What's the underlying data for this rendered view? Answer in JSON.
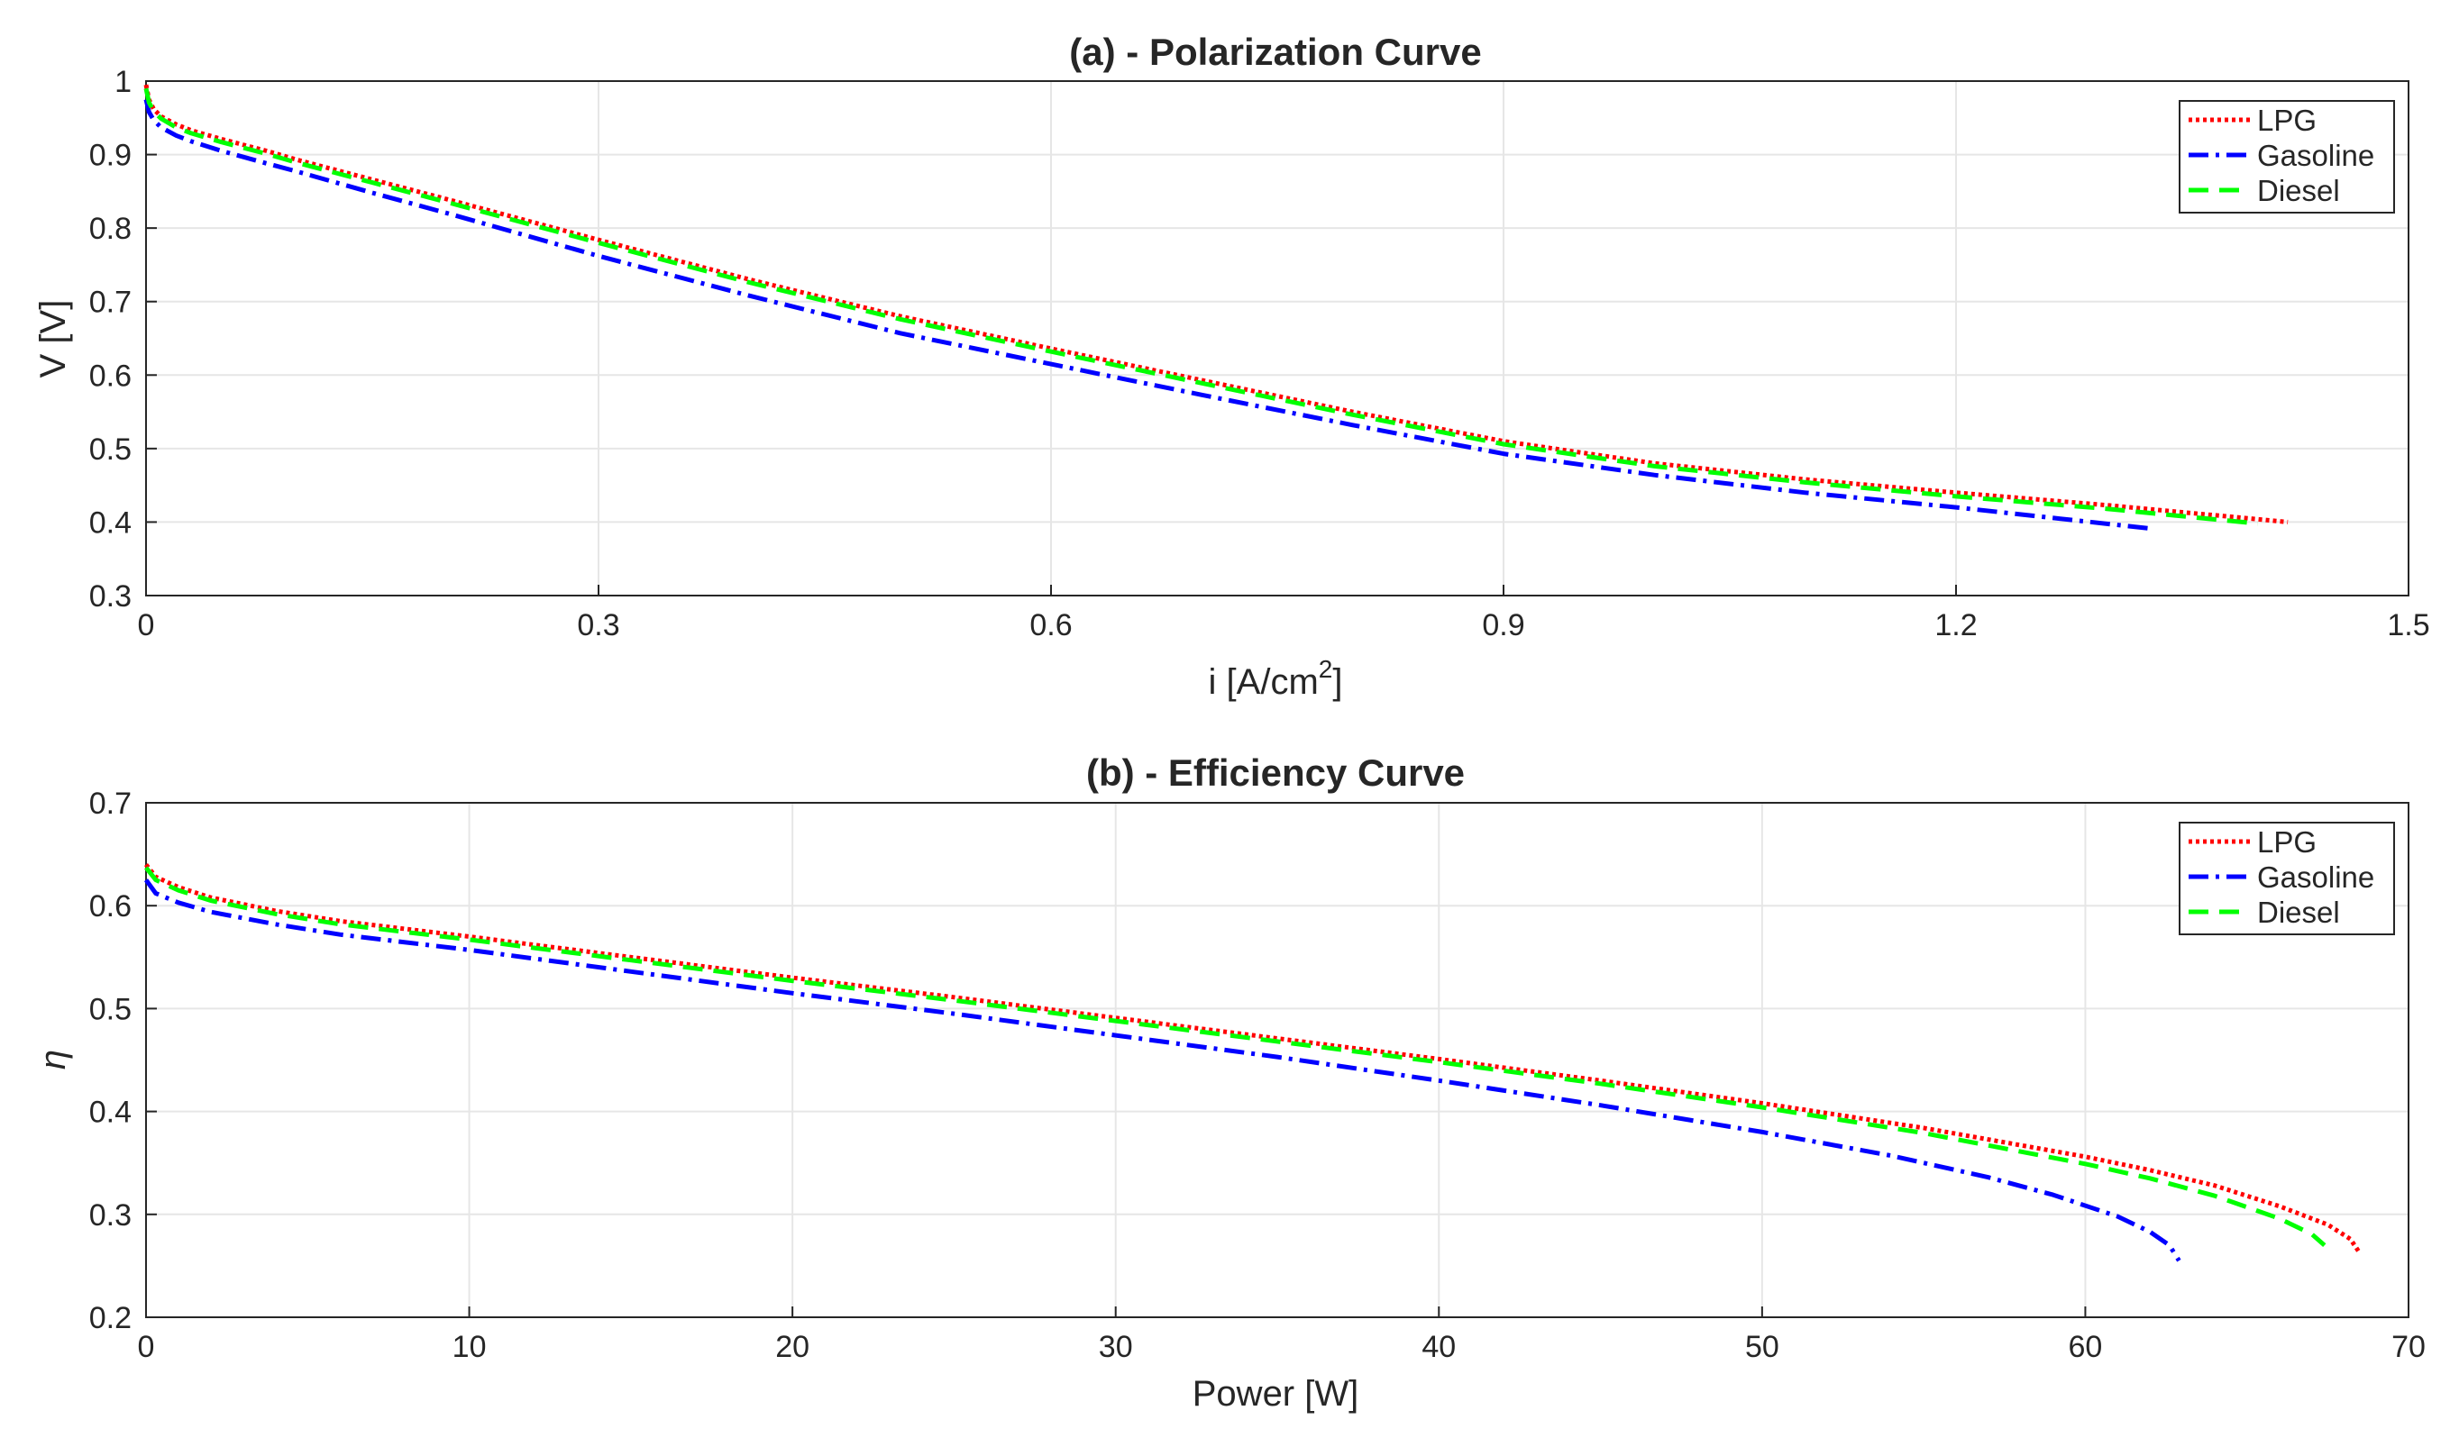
{
  "chart_data": [
    {
      "type": "line",
      "title": "(a) - Polarization Curve",
      "xlabel": "i [A/cm",
      "xlabel_sup": "2",
      "xlabel_tail": "]",
      "ylabel": "V [V]",
      "xlim": [
        0,
        1.5
      ],
      "ylim": [
        0.3,
        1
      ],
      "xticks": [
        0,
        0.3,
        0.6,
        0.9,
        1.2,
        1.5
      ],
      "xtick_labels": [
        "0",
        "0.3",
        "0.6",
        "0.9",
        "1.2",
        "1.5"
      ],
      "yticks": [
        0.3,
        0.4,
        0.5,
        0.6,
        0.7,
        0.8,
        0.9,
        1
      ],
      "ytick_labels": [
        "0.3",
        "0.4",
        "0.5",
        "0.6",
        "0.7",
        "0.8",
        "0.9",
        "1"
      ],
      "grid": true,
      "legend_position": "top-right",
      "series": [
        {
          "name": "LPG",
          "color": "#ff0000",
          "style": "dotted",
          "x": [
            0,
            0.002,
            0.005,
            0.01,
            0.02,
            0.03,
            0.05,
            0.08,
            0.1,
            0.15,
            0.2,
            0.3,
            0.4,
            0.5,
            0.6,
            0.7,
            0.8,
            0.9,
            1.0,
            1.1,
            1.2,
            1.3,
            1.42
          ],
          "y": [
            0.995,
            0.975,
            0.962,
            0.952,
            0.941,
            0.933,
            0.921,
            0.905,
            0.893,
            0.866,
            0.839,
            0.784,
            0.73,
            0.68,
            0.636,
            0.593,
            0.55,
            0.51,
            0.48,
            0.458,
            0.44,
            0.423,
            0.4
          ]
        },
        {
          "name": "Gasoline",
          "color": "#0000ff",
          "style": "dashdot",
          "x": [
            0,
            0.002,
            0.005,
            0.01,
            0.02,
            0.03,
            0.05,
            0.08,
            0.1,
            0.15,
            0.2,
            0.3,
            0.4,
            0.5,
            0.6,
            0.7,
            0.8,
            0.9,
            1.0,
            1.1,
            1.2,
            1.33
          ],
          "y": [
            0.975,
            0.958,
            0.947,
            0.937,
            0.926,
            0.918,
            0.905,
            0.888,
            0.877,
            0.848,
            0.82,
            0.762,
            0.708,
            0.657,
            0.615,
            0.573,
            0.532,
            0.493,
            0.464,
            0.44,
            0.42,
            0.391
          ]
        },
        {
          "name": "Diesel",
          "color": "#00ff00",
          "style": "dashed",
          "x": [
            0,
            0.002,
            0.005,
            0.01,
            0.02,
            0.03,
            0.05,
            0.08,
            0.1,
            0.15,
            0.2,
            0.3,
            0.4,
            0.5,
            0.6,
            0.7,
            0.8,
            0.9,
            1.0,
            1.1,
            1.2,
            1.3,
            1.4
          ],
          "y": [
            0.99,
            0.971,
            0.959,
            0.949,
            0.937,
            0.929,
            0.917,
            0.901,
            0.889,
            0.862,
            0.835,
            0.78,
            0.726,
            0.676,
            0.632,
            0.589,
            0.546,
            0.506,
            0.476,
            0.454,
            0.435,
            0.418,
            0.398
          ]
        }
      ]
    },
    {
      "type": "line",
      "title": "(b) - Efficiency Curve",
      "xlabel": "Power [W]",
      "ylabel": "η",
      "xlim": [
        0,
        70
      ],
      "ylim": [
        0.2,
        0.7
      ],
      "xticks": [
        0,
        10,
        20,
        30,
        40,
        50,
        60,
        70
      ],
      "xtick_labels": [
        "0",
        "10",
        "20",
        "30",
        "40",
        "50",
        "60",
        "70"
      ],
      "yticks": [
        0.2,
        0.3,
        0.4,
        0.5,
        0.6,
        0.7
      ],
      "ytick_labels": [
        "0.2",
        "0.3",
        "0.4",
        "0.5",
        "0.6",
        "0.7"
      ],
      "grid": true,
      "legend_position": "top-right",
      "series": [
        {
          "name": "LPG",
          "color": "#ff0000",
          "style": "dotted",
          "x": [
            0,
            0.3,
            1,
            2,
            4,
            6,
            10,
            15,
            20,
            25,
            30,
            35,
            40,
            45,
            50,
            55,
            60,
            62,
            64,
            66,
            67.5,
            68.2,
            68.5
          ],
          "y": [
            0.64,
            0.628,
            0.618,
            0.608,
            0.595,
            0.585,
            0.57,
            0.55,
            0.53,
            0.511,
            0.491,
            0.471,
            0.451,
            0.43,
            0.408,
            0.384,
            0.356,
            0.343,
            0.328,
            0.308,
            0.29,
            0.276,
            0.262
          ]
        },
        {
          "name": "Gasoline",
          "color": "#0000ff",
          "style": "dashdot",
          "x": [
            0,
            0.3,
            1,
            2,
            4,
            6,
            10,
            15,
            20,
            25,
            30,
            35,
            40,
            45,
            50,
            54,
            57,
            59,
            61,
            62,
            62.6,
            62.9
          ],
          "y": [
            0.625,
            0.612,
            0.603,
            0.594,
            0.582,
            0.572,
            0.557,
            0.536,
            0.515,
            0.495,
            0.474,
            0.453,
            0.43,
            0.406,
            0.38,
            0.357,
            0.336,
            0.319,
            0.298,
            0.283,
            0.27,
            0.255
          ]
        },
        {
          "name": "Diesel",
          "color": "#00ff00",
          "style": "dashed",
          "x": [
            0,
            0.3,
            1,
            2,
            4,
            6,
            10,
            15,
            20,
            25,
            30,
            35,
            40,
            45,
            50,
            55,
            60,
            62,
            64,
            66,
            67,
            67.4
          ],
          "y": [
            0.637,
            0.625,
            0.615,
            0.605,
            0.592,
            0.582,
            0.567,
            0.547,
            0.527,
            0.508,
            0.488,
            0.468,
            0.448,
            0.427,
            0.404,
            0.379,
            0.349,
            0.335,
            0.318,
            0.296,
            0.281,
            0.27
          ]
        }
      ]
    }
  ]
}
